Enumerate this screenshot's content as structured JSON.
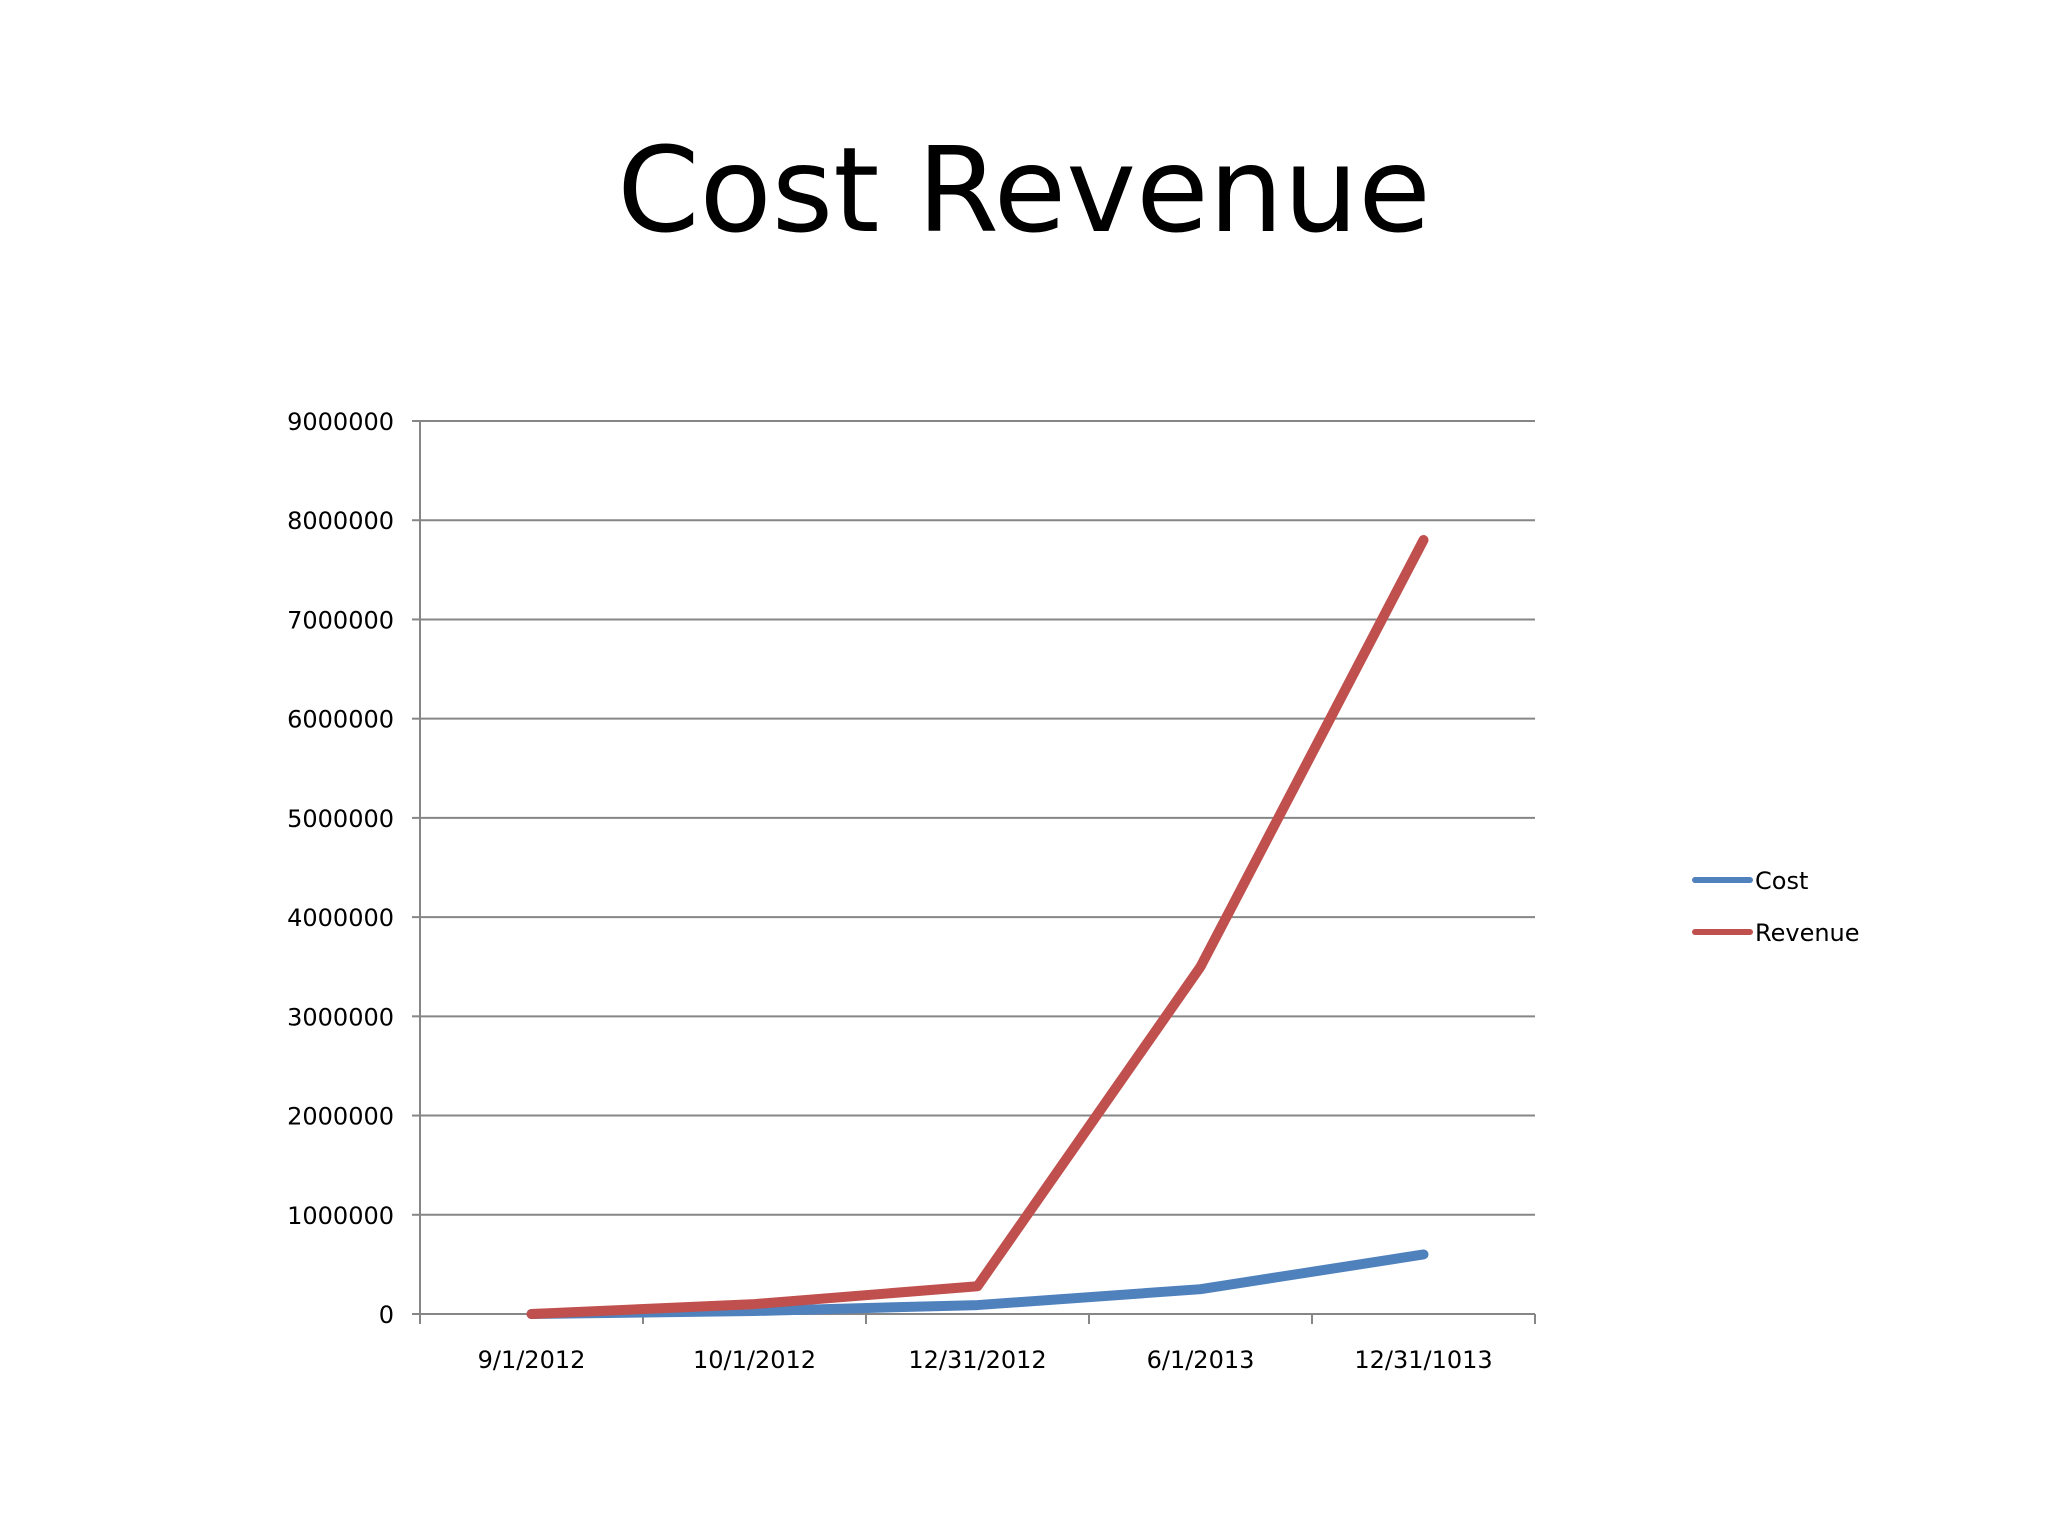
{
  "slide": {
    "title": "Cost Revenue"
  },
  "chart_data": {
    "type": "line",
    "title": "",
    "xlabel": "",
    "ylabel": "",
    "categories": [
      "9/1/2012",
      "10/1/2012",
      "12/31/2012",
      "6/1/2013",
      "12/31/1013"
    ],
    "ylim": [
      0,
      9000000
    ],
    "yticks": [
      0,
      1000000,
      2000000,
      3000000,
      4000000,
      5000000,
      6000000,
      7000000,
      8000000,
      9000000
    ],
    "ytick_labels": [
      "0",
      "1000000",
      "2000000",
      "3000000",
      "4000000",
      "5000000",
      "6000000",
      "7000000",
      "8000000",
      "9000000"
    ],
    "grid": true,
    "legend_position": "right",
    "series": [
      {
        "name": "Cost",
        "color": "#4F81BD",
        "values": [
          0,
          30000,
          90000,
          250000,
          600000
        ]
      },
      {
        "name": "Revenue",
        "color": "#C0504D",
        "values": [
          0,
          100000,
          280000,
          3500000,
          7800000
        ]
      }
    ],
    "axis_color": "#868686",
    "gridline_color": "#868686"
  }
}
